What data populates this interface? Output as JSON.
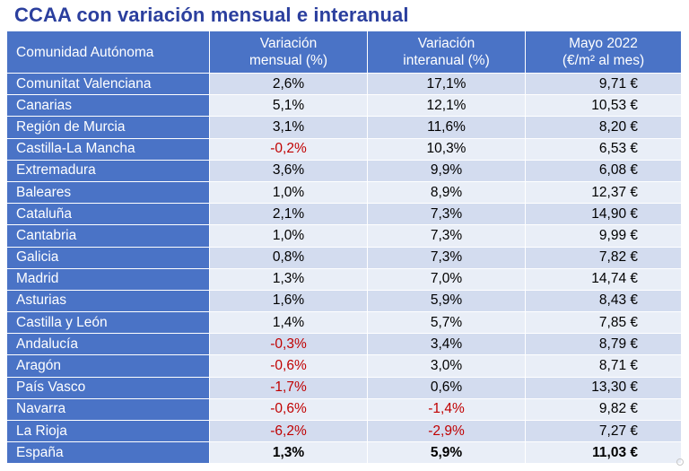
{
  "title": "CCAA con variación mensual e interanual",
  "columns": [
    "Comunidad Autónoma",
    "Variación mensual (%)",
    "Variación interanual (%)",
    "Mayo 2022 (€/m² al mes)"
  ],
  "columns_lines": {
    "monthly": [
      "Variación",
      "mensual (%)"
    ],
    "annual": [
      "Variación",
      "interanual (%)"
    ],
    "price": [
      "Mayo 2022",
      "(€/m² al mes)"
    ]
  },
  "rows": [
    {
      "region": "Comunitat Valenciana",
      "monthly": "2,6%",
      "annual": "17,1%",
      "price": "9,71 €"
    },
    {
      "region": "Canarias",
      "monthly": "5,1%",
      "annual": "12,1%",
      "price": "10,53 €"
    },
    {
      "region": "Región de Murcia",
      "monthly": "3,1%",
      "annual": "11,6%",
      "price": "8,20 €"
    },
    {
      "region": "Castilla-La Mancha",
      "monthly": "-0,2%",
      "annual": "10,3%",
      "price": "6,53 €"
    },
    {
      "region": "Extremadura",
      "monthly": "3,6%",
      "annual": "9,9%",
      "price": "6,08 €"
    },
    {
      "region": "Baleares",
      "monthly": "1,0%",
      "annual": "8,9%",
      "price": "12,37 €"
    },
    {
      "region": "Cataluña",
      "monthly": "2,1%",
      "annual": "7,3%",
      "price": "14,90 €"
    },
    {
      "region": "Cantabria",
      "monthly": "1,0%",
      "annual": "7,3%",
      "price": "9,99 €"
    },
    {
      "region": "Galicia",
      "monthly": "0,8%",
      "annual": "7,3%",
      "price": "7,82 €"
    },
    {
      "region": "Madrid",
      "monthly": "1,3%",
      "annual": "7,0%",
      "price": "14,74 €"
    },
    {
      "region": "Asturias",
      "monthly": "1,6%",
      "annual": "5,9%",
      "price": "8,43 €"
    },
    {
      "region": "Castilla y León",
      "monthly": "1,4%",
      "annual": "5,7%",
      "price": "7,85 €"
    },
    {
      "region": "Andalucía",
      "monthly": "-0,3%",
      "annual": "3,4%",
      "price": "8,79 €"
    },
    {
      "region": "Aragón",
      "monthly": "-0,6%",
      "annual": "3,0%",
      "price": "8,71 €"
    },
    {
      "region": "País Vasco",
      "monthly": "-1,7%",
      "annual": "0,6%",
      "price": "13,30 €"
    },
    {
      "region": "Navarra",
      "monthly": "-0,6%",
      "annual": "-1,4%",
      "price": "9,82 €"
    },
    {
      "region": "La Rioja",
      "monthly": "-6,2%",
      "annual": "-2,9%",
      "price": "7,27 €"
    },
    {
      "region": "España",
      "monthly": "1,3%",
      "annual": "5,9%",
      "price": "11,03 €",
      "total": true
    }
  ],
  "colors": {
    "header_bg": "#4a73c6",
    "title": "#2b3f9e",
    "negative": "#c00000",
    "row_odd": "#d3dcef",
    "row_even": "#e9eef7"
  }
}
